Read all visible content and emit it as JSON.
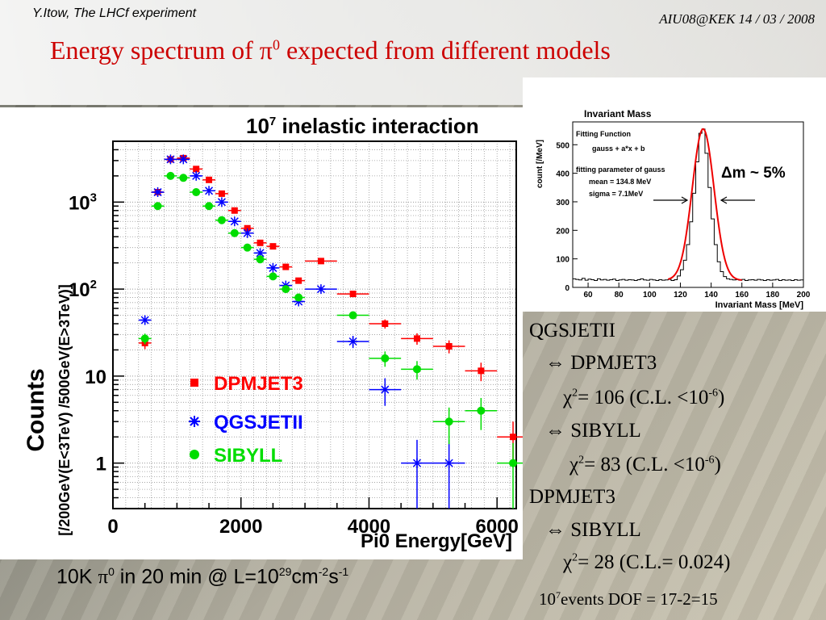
{
  "header": {
    "author": "Y.Itow,  The LHCf experiment",
    "meeting": "AIU08@KEK   14 / 03 / 2008",
    "title_prefix": "Energy spectrum of ",
    "title_pi": "π",
    "title_sup": "0",
    "title_suffix": " expected from different models"
  },
  "chart_data": [
    {
      "type": "scatter",
      "title_base": "10",
      "title_exp": "7",
      "title_rest": " inelastic interaction",
      "xlabel": "Pi0 Energy[GeV]",
      "ylabel": "Counts",
      "ylabel2": "[/200GeV(E<3TeV) /500GeV(E>3TeV)]",
      "xlim": [
        0,
        6300
      ],
      "ylim": [
        0.3,
        5000
      ],
      "yscale": "log",
      "grid": true,
      "legend": "bottom-center",
      "x_ticks": [
        "0",
        "2000",
        "4000",
        "6000"
      ],
      "x_tick_values": [
        0,
        2000,
        4000,
        6000
      ],
      "y_ticks": [
        {
          "value": 1,
          "base": "1",
          "exp": ""
        },
        {
          "value": 10,
          "base": "10",
          "exp": ""
        },
        {
          "value": 100,
          "base": "10",
          "exp": "2"
        },
        {
          "value": 1000,
          "base": "10",
          "exp": "3"
        }
      ],
      "series": [
        {
          "name": "DPMJET3",
          "color": "#ff0000",
          "marker": "square",
          "points": [
            [
              500,
              24,
              100,
              0.15
            ],
            [
              700,
              1300,
              100,
              0.05
            ],
            [
              900,
              3100,
              100,
              0.05
            ],
            [
              1100,
              3200,
              100,
              0.05
            ],
            [
              1300,
              2400,
              100,
              0.05
            ],
            [
              1500,
              1800,
              100,
              0.05
            ],
            [
              1700,
              1250,
              100,
              0.05
            ],
            [
              1900,
              800,
              100,
              0.05
            ],
            [
              2100,
              500,
              100,
              0.05
            ],
            [
              2300,
              340,
              100,
              0.05
            ],
            [
              2500,
              310,
              100,
              0.05
            ],
            [
              2700,
              180,
              100,
              0.06
            ],
            [
              2900,
              125,
              100,
              0.07
            ],
            [
              3250,
              210,
              250,
              0.06
            ],
            [
              3750,
              88,
              250,
              0.08
            ],
            [
              4250,
              40,
              250,
              0.12
            ],
            [
              4750,
              27,
              250,
              0.15
            ],
            [
              5250,
              22,
              250,
              0.17
            ],
            [
              5750,
              11.5,
              250,
              0.24
            ],
            [
              6250,
              2,
              250,
              0.5
            ]
          ]
        },
        {
          "name": "QGSJETII",
          "color": "#0000ff",
          "marker": "star",
          "points": [
            [
              500,
              44,
              100,
              0.12
            ],
            [
              700,
              1300,
              100,
              0.05
            ],
            [
              900,
              3100,
              100,
              0.05
            ],
            [
              1100,
              3100,
              100,
              0.05
            ],
            [
              1300,
              2000,
              100,
              0.05
            ],
            [
              1500,
              1350,
              100,
              0.05
            ],
            [
              1700,
              1000,
              100,
              0.05
            ],
            [
              1900,
              600,
              100,
              0.05
            ],
            [
              2100,
              440,
              100,
              0.05
            ],
            [
              2300,
              260,
              100,
              0.06
            ],
            [
              2500,
              175,
              100,
              0.06
            ],
            [
              2700,
              110,
              100,
              0.07
            ],
            [
              2900,
              72,
              100,
              0.08
            ],
            [
              3250,
              100,
              250,
              0.08
            ],
            [
              3750,
              25,
              250,
              0.16
            ],
            [
              4250,
              7,
              250,
              0.35
            ],
            [
              4750,
              1,
              250,
              0.85
            ],
            [
              5250,
              1,
              250,
              0.85
            ]
          ]
        },
        {
          "name": "SIBYLL",
          "color": "#00dd00",
          "marker": "circle",
          "points": [
            [
              500,
              27,
              100,
              0.14
            ],
            [
              700,
              900,
              100,
              0.05
            ],
            [
              900,
              2000,
              100,
              0.05
            ],
            [
              1100,
              1900,
              100,
              0.05
            ],
            [
              1300,
              1300,
              100,
              0.05
            ],
            [
              1500,
              900,
              100,
              0.05
            ],
            [
              1700,
              620,
              100,
              0.05
            ],
            [
              1900,
              440,
              100,
              0.05
            ],
            [
              2100,
              300,
              100,
              0.06
            ],
            [
              2300,
              220,
              100,
              0.06
            ],
            [
              2500,
              140,
              100,
              0.07
            ],
            [
              2700,
              100,
              100,
              0.07
            ],
            [
              2900,
              80,
              100,
              0.08
            ],
            [
              3750,
              50,
              250,
              0.1
            ],
            [
              4250,
              16,
              250,
              0.2
            ],
            [
              4750,
              12,
              250,
              0.24
            ],
            [
              5250,
              3,
              250,
              0.45
            ],
            [
              5750,
              4,
              250,
              0.4
            ],
            [
              6250,
              1,
              250,
              0.7
            ]
          ]
        }
      ]
    },
    {
      "type": "line",
      "title": "Invariant Mass",
      "xlabel": "Invariant Mass [MeV]",
      "ylabel": "count [/MeV]",
      "xlim": [
        50,
        200
      ],
      "ylim": [
        0,
        580
      ],
      "x_ticks": [
        60,
        80,
        100,
        120,
        140,
        160,
        180,
        200
      ],
      "y_ticks": [
        0,
        100,
        200,
        300,
        400,
        500
      ],
      "fit_info": [
        "Fitting Function",
        "gauss + a*x + b",
        "fitting parameter of gauss",
        "mean =  134.8 MeV",
        "sigma = 7.1MeV"
      ],
      "annotation": "Δm ~ 5%",
      "histogram": {
        "x_start": 50,
        "bin_width": 2,
        "counts": [
          30,
          28,
          26,
          32,
          25,
          29,
          27,
          24,
          30,
          26,
          28,
          25,
          27,
          29,
          24,
          26,
          28,
          25,
          27,
          26,
          24,
          27,
          30,
          26,
          25,
          28,
          26,
          24,
          27,
          25,
          26,
          28,
          24,
          27,
          40,
          62,
          95,
          150,
          230,
          330,
          440,
          540,
          555,
          470,
          350,
          240,
          150,
          90,
          55,
          38,
          30,
          28,
          26,
          27,
          25,
          28,
          24,
          26,
          27,
          25,
          28,
          26,
          24,
          27,
          25,
          26,
          28,
          24,
          27,
          25,
          26,
          24,
          27,
          25,
          26
        ]
      },
      "fit": {
        "mean": 134.8,
        "sigma": 7.1,
        "amplitude": 530,
        "a": -0.02,
        "b": 28
      }
    }
  ],
  "right_text": {
    "line1": "QGSJETII",
    "line2": "⇔ DPMJET3",
    "chi_a": "χ",
    "line3_rest": "= 106 (C.L. <10",
    "line3_exp": "-6",
    "line3_end": ")",
    "line4": "⇔ SIBYLL",
    "line5_rest": "= 83 (C.L. <10",
    "line5_exp": "-6",
    "line5_end": ")",
    "line6": "DPMJET3",
    "line7": "⇔ SIBYLL",
    "line8_rest": "= 28 (C.L.= 0.024)",
    "two": "2"
  },
  "bottom_note": {
    "p1": "10K ",
    "pi": "π",
    "sup0": "0",
    "p2": " in 20 min @ L=10",
    "sup29": "29",
    "p3": "cm",
    "sup_m2": "-2",
    "p4": "s",
    "sup_m1": "-1"
  },
  "dof_note": {
    "base": "10",
    "exp": "7",
    "rest": "events DOF = 17-2=15"
  }
}
